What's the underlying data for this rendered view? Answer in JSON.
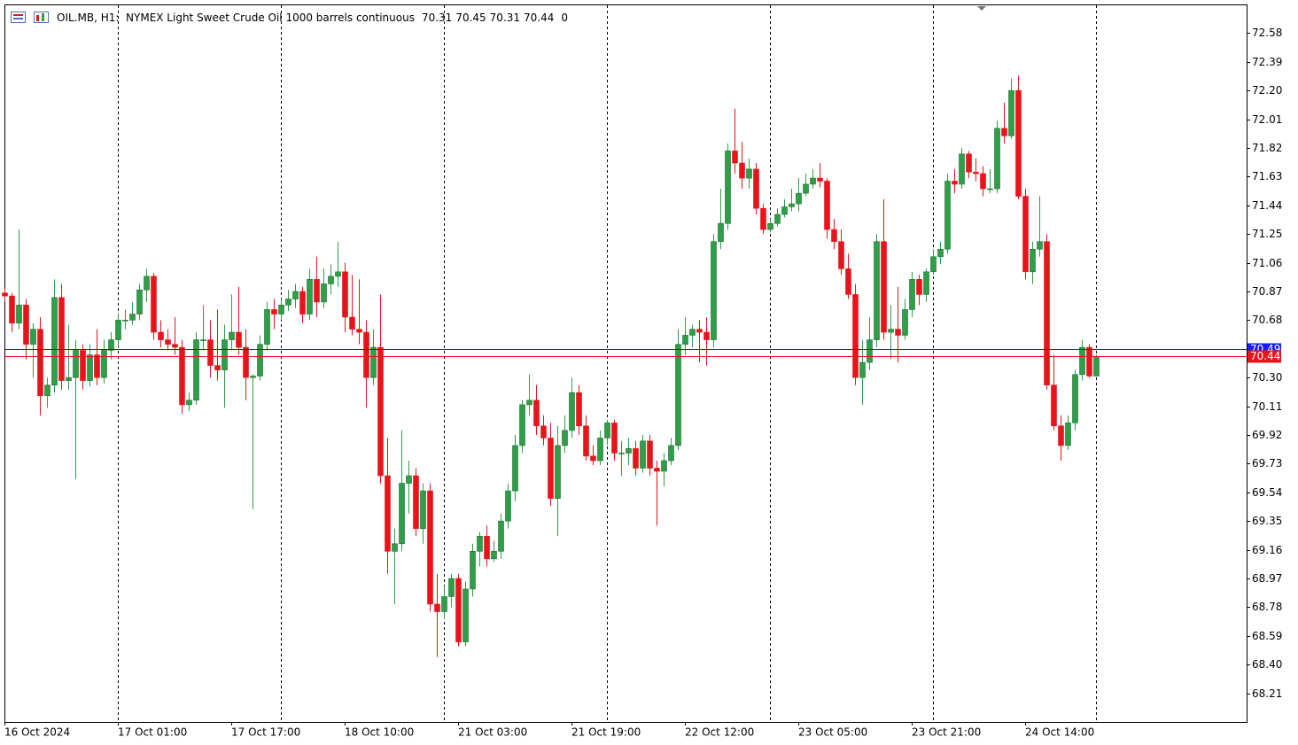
{
  "chart_data": {
    "type": "candlestick",
    "title": "OIL.MB, H1:  NYMEX Light Sweet Crude Oil 1000 barrels continuous",
    "header_value": 0,
    "up_color": "#2e9e48",
    "down_color": "#e8141b",
    "ylim": [
      68.02,
      72.77
    ],
    "yticks": [
      72.58,
      72.39,
      {
        "value": 72.2,
        "label": "72.20"
      },
      72.01,
      71.82,
      71.63,
      71.44,
      71.25,
      71.06,
      70.87,
      70.68,
      {
        "value": 70.3,
        "label": "70.30"
      },
      70.11,
      69.92,
      69.73,
      69.54,
      69.35,
      69.16,
      68.97,
      68.78,
      68.59,
      {
        "value": 68.4,
        "label": "68.40"
      },
      68.21
    ],
    "ask": 70.49,
    "ask_color": "#1a1aff",
    "bid": 70.44,
    "bid_color": "#e8141b",
    "categories": [
      "16 Oct 2024",
      null,
      null,
      null,
      null,
      null,
      null,
      null,
      null,
      null,
      null,
      null,
      null,
      null,
      null,
      null,
      "17 Oct 01:00",
      null,
      null,
      null,
      null,
      null,
      null,
      null,
      null,
      null,
      null,
      null,
      null,
      null,
      null,
      null,
      "17 Oct 17:00",
      null,
      null,
      null,
      null,
      null,
      null,
      null,
      null,
      null,
      null,
      null,
      null,
      null,
      null,
      null,
      "18 Oct 10:00",
      null,
      null,
      null,
      null,
      null,
      null,
      null,
      null,
      null,
      null,
      null,
      null,
      null,
      null,
      null,
      "21 Oct 03:00",
      null,
      null,
      null,
      null,
      null,
      null,
      null,
      null,
      null,
      null,
      null,
      null,
      null,
      null,
      null,
      "21 Oct 19:00",
      null,
      null,
      null,
      null,
      null,
      null,
      null,
      null,
      null,
      null,
      null,
      null,
      null,
      null,
      null,
      "22 Oct 12:00",
      null,
      null,
      null,
      null,
      null,
      null,
      null,
      null,
      null,
      null,
      null,
      null,
      null,
      null,
      null,
      "23 Oct 05:00",
      null,
      null,
      null,
      null,
      null,
      null,
      null,
      null,
      null,
      null,
      null,
      null,
      null,
      null,
      null,
      "23 Oct 21:00",
      null,
      null,
      null,
      null,
      null,
      null,
      null,
      null,
      null,
      null,
      null,
      null,
      null,
      null,
      null,
      "24 Oct 14:00",
      null,
      null,
      null,
      null,
      null,
      null,
      null,
      null,
      null,
      null
    ],
    "candles": [
      {
        "o": 70.86,
        "h": 70.89,
        "l": 70.8,
        "c": 70.84
      },
      {
        "o": 70.84,
        "h": 70.86,
        "l": 70.6,
        "c": 70.66
      },
      {
        "o": 70.66,
        "h": 71.28,
        "l": 70.62,
        "c": 70.78
      },
      {
        "o": 70.78,
        "h": 70.82,
        "l": 70.42,
        "c": 70.52
      },
      {
        "o": 70.52,
        "h": 70.66,
        "l": 70.3,
        "c": 70.62
      },
      {
        "o": 70.62,
        "h": 70.7,
        "l": 70.05,
        "c": 70.18
      },
      {
        "o": 70.18,
        "h": 70.3,
        "l": 70.1,
        "c": 70.25
      },
      {
        "o": 70.25,
        "h": 70.95,
        "l": 70.2,
        "c": 70.83
      },
      {
        "o": 70.83,
        "h": 70.92,
        "l": 70.22,
        "c": 70.28
      },
      {
        "o": 70.28,
        "h": 70.65,
        "l": 70.22,
        "c": 70.3
      },
      {
        "o": 70.3,
        "h": 70.55,
        "l": 69.63,
        "c": 70.48
      },
      {
        "o": 70.48,
        "h": 70.52,
        "l": 70.22,
        "c": 70.28
      },
      {
        "o": 70.28,
        "h": 70.52,
        "l": 70.24,
        "c": 70.45
      },
      {
        "o": 70.45,
        "h": 70.62,
        "l": 70.25,
        "c": 70.3
      },
      {
        "o": 70.3,
        "h": 70.55,
        "l": 70.26,
        "c": 70.48
      },
      {
        "o": 70.48,
        "h": 70.6,
        "l": 70.42,
        "c": 70.55
      },
      {
        "o": 70.55,
        "h": 70.72,
        "l": 70.5,
        "c": 70.68
      },
      {
        "o": 70.68,
        "h": 70.75,
        "l": 70.62,
        "c": 70.68
      },
      {
        "o": 70.68,
        "h": 70.8,
        "l": 70.65,
        "c": 70.72
      },
      {
        "o": 70.72,
        "h": 70.92,
        "l": 70.68,
        "c": 70.88
      },
      {
        "o": 70.88,
        "h": 71.02,
        "l": 70.8,
        "c": 70.97
      },
      {
        "o": 70.97,
        "h": 70.99,
        "l": 70.55,
        "c": 70.6
      },
      {
        "o": 70.6,
        "h": 70.68,
        "l": 70.5,
        "c": 70.55
      },
      {
        "o": 70.55,
        "h": 70.62,
        "l": 70.48,
        "c": 70.52
      },
      {
        "o": 70.52,
        "h": 70.7,
        "l": 70.45,
        "c": 70.5
      },
      {
        "o": 70.5,
        "h": 70.55,
        "l": 70.06,
        "c": 70.12
      },
      {
        "o": 70.12,
        "h": 70.2,
        "l": 70.08,
        "c": 70.15
      },
      {
        "o": 70.15,
        "h": 70.6,
        "l": 70.12,
        "c": 70.55
      },
      {
        "o": 70.55,
        "h": 70.78,
        "l": 70.48,
        "c": 70.55
      },
      {
        "o": 70.55,
        "h": 70.68,
        "l": 70.3,
        "c": 70.38
      },
      {
        "o": 70.38,
        "h": 70.75,
        "l": 70.28,
        "c": 70.35
      },
      {
        "o": 70.35,
        "h": 70.65,
        "l": 70.1,
        "c": 70.55
      },
      {
        "o": 70.55,
        "h": 70.85,
        "l": 70.48,
        "c": 70.6
      },
      {
        "o": 70.6,
        "h": 70.9,
        "l": 70.45,
        "c": 70.5
      },
      {
        "o": 70.5,
        "h": 70.62,
        "l": 70.15,
        "c": 70.3
      },
      {
        "o": 70.3,
        "h": 70.32,
        "l": 69.43,
        "c": 70.31
      },
      {
        "o": 70.31,
        "h": 70.58,
        "l": 70.28,
        "c": 70.52
      },
      {
        "o": 70.52,
        "h": 70.8,
        "l": 70.48,
        "c": 70.75
      },
      {
        "o": 70.75,
        "h": 70.82,
        "l": 70.62,
        "c": 70.72
      },
      {
        "o": 70.72,
        "h": 70.82,
        "l": 70.68,
        "c": 70.78
      },
      {
        "o": 70.78,
        "h": 70.88,
        "l": 70.74,
        "c": 70.82
      },
      {
        "o": 70.82,
        "h": 70.92,
        "l": 70.76,
        "c": 70.87
      },
      {
        "o": 70.87,
        "h": 70.9,
        "l": 70.66,
        "c": 70.72
      },
      {
        "o": 70.72,
        "h": 71.02,
        "l": 70.68,
        "c": 70.95
      },
      {
        "o": 70.95,
        "h": 71.1,
        "l": 70.7,
        "c": 70.8
      },
      {
        "o": 70.8,
        "h": 71.02,
        "l": 70.76,
        "c": 70.92
      },
      {
        "o": 70.92,
        "h": 71.05,
        "l": 70.85,
        "c": 70.97
      },
      {
        "o": 70.97,
        "h": 71.2,
        "l": 70.9,
        "c": 71.0
      },
      {
        "o": 71.0,
        "h": 71.06,
        "l": 70.6,
        "c": 70.7
      },
      {
        "o": 70.7,
        "h": 70.98,
        "l": 70.58,
        "c": 70.62
      },
      {
        "o": 70.62,
        "h": 70.95,
        "l": 70.52,
        "c": 70.6
      },
      {
        "o": 70.6,
        "h": 70.68,
        "l": 70.1,
        "c": 70.3
      },
      {
        "o": 70.3,
        "h": 70.62,
        "l": 70.25,
        "c": 70.5
      },
      {
        "o": 70.5,
        "h": 70.85,
        "l": 69.6,
        "c": 69.65
      },
      {
        "o": 69.65,
        "h": 69.9,
        "l": 69.0,
        "c": 69.15
      },
      {
        "o": 69.15,
        "h": 69.3,
        "l": 68.8,
        "c": 69.2
      },
      {
        "o": 69.2,
        "h": 69.95,
        "l": 69.15,
        "c": 69.6
      },
      {
        "o": 69.6,
        "h": 69.75,
        "l": 69.4,
        "c": 69.65
      },
      {
        "o": 69.65,
        "h": 69.7,
        "l": 69.25,
        "c": 69.3
      },
      {
        "o": 69.3,
        "h": 69.6,
        "l": 69.2,
        "c": 69.55
      },
      {
        "o": 69.55,
        "h": 69.6,
        "l": 68.75,
        "c": 68.8
      },
      {
        "o": 68.8,
        "h": 69.0,
        "l": 68.45,
        "c": 68.75
      },
      {
        "o": 68.75,
        "h": 68.92,
        "l": 68.7,
        "c": 68.85
      },
      {
        "o": 68.85,
        "h": 69.0,
        "l": 68.78,
        "c": 68.97
      },
      {
        "o": 68.97,
        "h": 69.0,
        "l": 68.52,
        "c": 68.55
      },
      {
        "o": 68.55,
        "h": 68.95,
        "l": 68.52,
        "c": 68.9
      },
      {
        "o": 68.9,
        "h": 69.2,
        "l": 68.85,
        "c": 69.15
      },
      {
        "o": 69.15,
        "h": 69.28,
        "l": 69.05,
        "c": 69.25
      },
      {
        "o": 69.25,
        "h": 69.32,
        "l": 69.05,
        "c": 69.1
      },
      {
        "o": 69.1,
        "h": 69.22,
        "l": 69.08,
        "c": 69.15
      },
      {
        "o": 69.15,
        "h": 69.4,
        "l": 69.1,
        "c": 69.35
      },
      {
        "o": 69.35,
        "h": 69.6,
        "l": 69.3,
        "c": 69.55
      },
      {
        "o": 69.55,
        "h": 69.92,
        "l": 69.48,
        "c": 69.85
      },
      {
        "o": 69.85,
        "h": 70.15,
        "l": 69.8,
        "c": 70.12
      },
      {
        "o": 70.12,
        "h": 70.32,
        "l": 70.05,
        "c": 70.15
      },
      {
        "o": 70.15,
        "h": 70.25,
        "l": 69.92,
        "c": 69.98
      },
      {
        "o": 69.98,
        "h": 70.05,
        "l": 69.85,
        "c": 69.9
      },
      {
        "o": 69.9,
        "h": 70.0,
        "l": 69.45,
        "c": 69.5
      },
      {
        "o": 69.5,
        "h": 69.98,
        "l": 69.25,
        "c": 69.85
      },
      {
        "o": 69.85,
        "h": 70.05,
        "l": 69.8,
        "c": 69.95
      },
      {
        "o": 69.95,
        "h": 70.3,
        "l": 69.9,
        "c": 70.2
      },
      {
        "o": 70.2,
        "h": 70.25,
        "l": 69.92,
        "c": 69.98
      },
      {
        "o": 69.98,
        "h": 70.05,
        "l": 69.75,
        "c": 69.78
      },
      {
        "o": 69.78,
        "h": 69.85,
        "l": 69.72,
        "c": 69.75
      },
      {
        "o": 69.75,
        "h": 69.95,
        "l": 69.72,
        "c": 69.9
      },
      {
        "o": 69.9,
        "h": 70.02,
        "l": 69.85,
        "c": 70.0
      },
      {
        "o": 70.0,
        "h": 70.02,
        "l": 69.75,
        "c": 69.8
      },
      {
        "o": 69.8,
        "h": 69.88,
        "l": 69.65,
        "c": 69.8
      },
      {
        "o": 69.8,
        "h": 69.9,
        "l": 69.72,
        "c": 69.83
      },
      {
        "o": 69.83,
        "h": 69.88,
        "l": 69.65,
        "c": 69.7
      },
      {
        "o": 69.7,
        "h": 69.92,
        "l": 69.67,
        "c": 69.88
      },
      {
        "o": 69.88,
        "h": 69.92,
        "l": 69.65,
        "c": 69.7
      },
      {
        "o": 69.7,
        "h": 69.75,
        "l": 69.32,
        "c": 69.68
      },
      {
        "o": 69.68,
        "h": 69.8,
        "l": 69.58,
        "c": 69.75
      },
      {
        "o": 69.75,
        "h": 69.9,
        "l": 69.72,
        "c": 69.85
      },
      {
        "o": 69.85,
        "h": 70.62,
        "l": 69.82,
        "c": 70.52
      },
      {
        "o": 70.52,
        "h": 70.7,
        "l": 70.45,
        "c": 70.58
      },
      {
        "o": 70.58,
        "h": 70.65,
        "l": 70.5,
        "c": 70.62
      },
      {
        "o": 70.62,
        "h": 70.68,
        "l": 70.4,
        "c": 70.6
      },
      {
        "o": 70.6,
        "h": 70.7,
        "l": 70.38,
        "c": 70.55
      },
      {
        "o": 70.55,
        "h": 71.25,
        "l": 70.5,
        "c": 71.2
      },
      {
        "o": 71.2,
        "h": 71.55,
        "l": 71.15,
        "c": 71.32
      },
      {
        "o": 71.32,
        "h": 71.85,
        "l": 71.28,
        "c": 71.8
      },
      {
        "o": 71.8,
        "h": 72.08,
        "l": 71.65,
        "c": 71.72
      },
      {
        "o": 71.72,
        "h": 71.86,
        "l": 71.55,
        "c": 71.62
      },
      {
        "o": 71.62,
        "h": 71.75,
        "l": 71.55,
        "c": 71.68
      },
      {
        "o": 71.68,
        "h": 71.72,
        "l": 71.38,
        "c": 71.42
      },
      {
        "o": 71.42,
        "h": 71.45,
        "l": 71.25,
        "c": 71.28
      },
      {
        "o": 71.28,
        "h": 71.35,
        "l": 71.26,
        "c": 71.32
      },
      {
        "o": 71.32,
        "h": 71.42,
        "l": 71.3,
        "c": 71.38
      },
      {
        "o": 71.38,
        "h": 71.48,
        "l": 71.36,
        "c": 71.43
      },
      {
        "o": 71.43,
        "h": 71.55,
        "l": 71.4,
        "c": 71.45
      },
      {
        "o": 71.45,
        "h": 71.62,
        "l": 71.4,
        "c": 71.52
      },
      {
        "o": 71.52,
        "h": 71.65,
        "l": 71.5,
        "c": 71.58
      },
      {
        "o": 71.58,
        "h": 71.68,
        "l": 71.55,
        "c": 71.62
      },
      {
        "o": 71.62,
        "h": 71.72,
        "l": 71.56,
        "c": 71.6
      },
      {
        "o": 71.6,
        "h": 71.62,
        "l": 71.22,
        "c": 71.28
      },
      {
        "o": 71.28,
        "h": 71.35,
        "l": 71.15,
        "c": 71.2
      },
      {
        "o": 71.2,
        "h": 71.28,
        "l": 70.98,
        "c": 71.02
      },
      {
        "o": 71.02,
        "h": 71.12,
        "l": 70.82,
        "c": 70.85
      },
      {
        "o": 70.85,
        "h": 70.92,
        "l": 70.25,
        "c": 70.3
      },
      {
        "o": 70.3,
        "h": 70.55,
        "l": 70.12,
        "c": 70.4
      },
      {
        "o": 70.4,
        "h": 70.7,
        "l": 70.35,
        "c": 70.55
      },
      {
        "o": 70.55,
        "h": 71.25,
        "l": 70.5,
        "c": 71.2
      },
      {
        "o": 71.2,
        "h": 71.48,
        "l": 70.55,
        "c": 70.6
      },
      {
        "o": 70.6,
        "h": 70.78,
        "l": 70.42,
        "c": 70.62
      },
      {
        "o": 70.62,
        "h": 70.9,
        "l": 70.4,
        "c": 70.58
      },
      {
        "o": 70.58,
        "h": 70.82,
        "l": 70.55,
        "c": 70.75
      },
      {
        "o": 70.75,
        "h": 71.0,
        "l": 70.7,
        "c": 70.95
      },
      {
        "o": 70.95,
        "h": 70.98,
        "l": 70.78,
        "c": 70.85
      },
      {
        "o": 70.85,
        "h": 71.02,
        "l": 70.8,
        "c": 71.0
      },
      {
        "o": 71.0,
        "h": 71.15,
        "l": 70.98,
        "c": 71.1
      },
      {
        "o": 71.1,
        "h": 71.2,
        "l": 71.05,
        "c": 71.15
      },
      {
        "o": 71.15,
        "h": 71.65,
        "l": 71.12,
        "c": 71.6
      },
      {
        "o": 71.6,
        "h": 71.68,
        "l": 71.52,
        "c": 71.58
      },
      {
        "o": 71.58,
        "h": 71.82,
        "l": 71.55,
        "c": 71.78
      },
      {
        "o": 71.78,
        "h": 71.8,
        "l": 71.62,
        "c": 71.66
      },
      {
        "o": 71.66,
        "h": 71.75,
        "l": 71.6,
        "c": 71.65
      },
      {
        "o": 71.65,
        "h": 71.7,
        "l": 71.5,
        "c": 71.55
      },
      {
        "o": 71.55,
        "h": 71.68,
        "l": 71.52,
        "c": 71.55
      },
      {
        "o": 71.55,
        "h": 72.0,
        "l": 71.52,
        "c": 71.95
      },
      {
        "o": 71.95,
        "h": 72.12,
        "l": 71.85,
        "c": 71.9
      },
      {
        "o": 71.9,
        "h": 72.28,
        "l": 71.88,
        "c": 72.2
      },
      {
        "o": 72.2,
        "h": 72.3,
        "l": 71.48,
        "c": 71.5
      },
      {
        "o": 71.5,
        "h": 71.55,
        "l": 70.95,
        "c": 71.0
      },
      {
        "o": 71.0,
        "h": 71.2,
        "l": 70.92,
        "c": 71.15
      },
      {
        "o": 71.15,
        "h": 71.5,
        "l": 71.1,
        "c": 71.2
      },
      {
        "o": 71.2,
        "h": 71.25,
        "l": 70.22,
        "c": 70.25
      },
      {
        "o": 70.25,
        "h": 70.45,
        "l": 69.95,
        "c": 69.98
      },
      {
        "o": 69.98,
        "h": 70.05,
        "l": 69.75,
        "c": 69.85
      },
      {
        "o": 69.85,
        "h": 70.05,
        "l": 69.82,
        "c": 70.0
      },
      {
        "o": 70.0,
        "h": 70.35,
        "l": 69.95,
        "c": 70.32
      },
      {
        "o": 70.32,
        "h": 70.55,
        "l": 70.28,
        "c": 70.5
      },
      {
        "o": 70.5,
        "h": 70.52,
        "l": 70.3,
        "c": 70.31
      },
      {
        "o": 70.31,
        "h": 70.45,
        "l": 70.31,
        "c": 70.44
      }
    ]
  }
}
